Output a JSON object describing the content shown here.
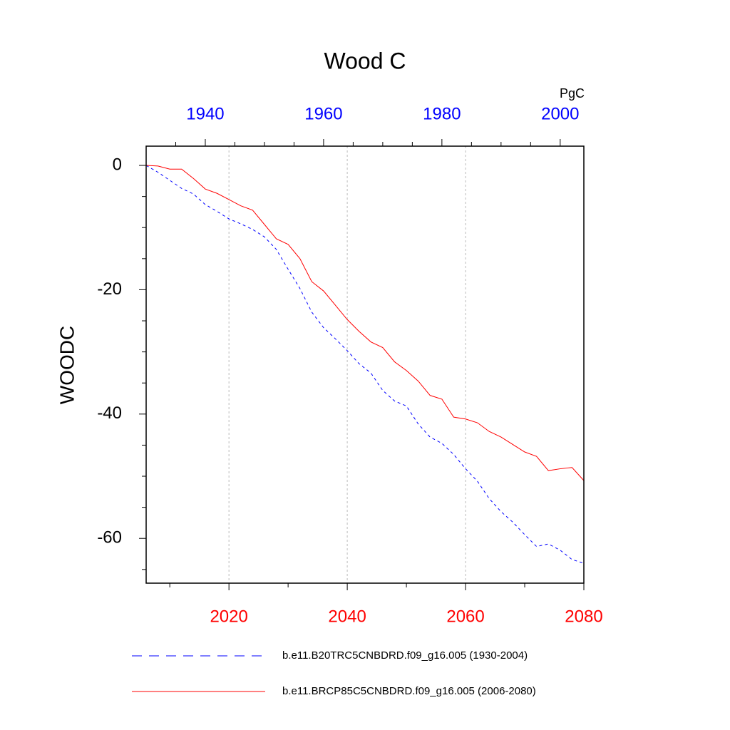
{
  "chart_data": {
    "type": "line",
    "title": "Wood C",
    "ylabel": "WOODC",
    "units": "PgC",
    "xlim": [
      2006,
      2080
    ],
    "xticks": [
      2020,
      2040,
      2060,
      2080
    ],
    "xminorticks": [
      2010,
      2030,
      2050,
      2070
    ],
    "xtick_color": "#ff0000",
    "x2lim": [
      1930,
      2004
    ],
    "x2ticks": [
      1940,
      1960,
      1980,
      2000
    ],
    "x2minorticks": [
      1935,
      1945,
      1950,
      1955,
      1965,
      1970,
      1975,
      1985,
      1990,
      1995
    ],
    "x2tick_color": "#0000ff",
    "ylim": [
      -67.2,
      3.1
    ],
    "yticks": [
      -60,
      -40,
      -20,
      0
    ],
    "yminorticks": [
      -65,
      -55,
      -50,
      -45,
      -35,
      -30,
      -25,
      -15,
      -10,
      -5
    ],
    "grid": true,
    "series": [
      {
        "name": "b.e11.B20TRC5CNBDRD.f09_g16.005 (1930-2004)",
        "color": "#0000ff",
        "dashed": true,
        "axis": "x2",
        "x": [
          1930,
          1932,
          1934,
          1936,
          1938,
          1940,
          1942,
          1944,
          1946,
          1948,
          1950,
          1952,
          1954,
          1956,
          1958,
          1960,
          1962,
          1964,
          1966,
          1968,
          1970,
          1972,
          1974,
          1976,
          1978,
          1980,
          1982,
          1984,
          1986,
          1988,
          1990,
          1992,
          1994,
          1996,
          1998,
          2000,
          2002,
          2004
        ],
        "values": [
          0,
          -1.1,
          -2.4,
          -3.7,
          -4.6,
          -6.3,
          -7.4,
          -8.6,
          -9.4,
          -10.3,
          -11.5,
          -13.5,
          -16.7,
          -19.8,
          -23.6,
          -26.1,
          -27.9,
          -29.8,
          -31.9,
          -33.4,
          -36.2,
          -37.9,
          -38.7,
          -41.6,
          -43.7,
          -44.7,
          -46.5,
          -48.8,
          -50.8,
          -53.6,
          -55.7,
          -57.4,
          -59.4,
          -61.3,
          -60.9,
          -61.9,
          -63.4,
          -64.0
        ]
      },
      {
        "name": "b.e11.BRCP85C5CNBDRD.f09_g16.005 (2006-2080)",
        "color": "#ff0000",
        "dashed": false,
        "axis": "x",
        "x": [
          2006,
          2008,
          2010,
          2012,
          2014,
          2016,
          2018,
          2020,
          2022,
          2024,
          2026,
          2028,
          2030,
          2032,
          2034,
          2036,
          2038,
          2040,
          2042,
          2044,
          2046,
          2048,
          2050,
          2052,
          2054,
          2056,
          2058,
          2060,
          2062,
          2064,
          2066,
          2068,
          2070,
          2072,
          2074,
          2076,
          2078,
          2080
        ],
        "values": [
          0,
          -0.1,
          -0.6,
          -0.6,
          -2.1,
          -3.8,
          -4.5,
          -5.5,
          -6.5,
          -7.2,
          -9.5,
          -11.8,
          -12.7,
          -15.0,
          -18.7,
          -20.2,
          -22.5,
          -24.8,
          -26.7,
          -28.4,
          -29.3,
          -31.6,
          -33.0,
          -34.7,
          -37.0,
          -37.6,
          -40.5,
          -40.8,
          -41.4,
          -42.8,
          -43.7,
          -44.9,
          -46.1,
          -46.8,
          -49.1,
          -48.8,
          -48.6,
          -50.7
        ]
      }
    ]
  }
}
